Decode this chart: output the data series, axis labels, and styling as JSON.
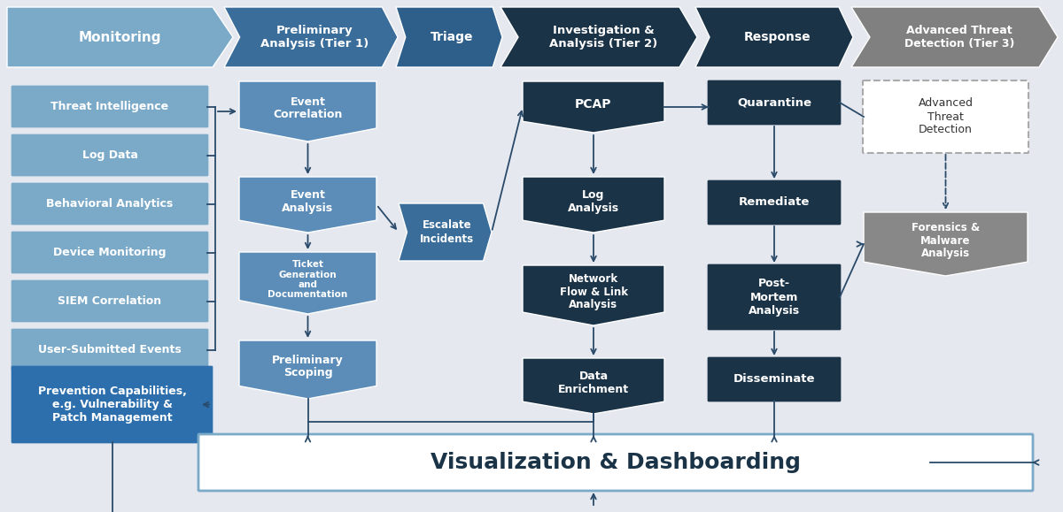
{
  "bg_color": "#e5e8ef",
  "header_colors": {
    "monitoring": "#7baac9",
    "prelim": "#3a6d99",
    "triage": "#2e5f8a",
    "investigation": "#1a3347",
    "response": "#1a3347",
    "advanced": "#808080"
  },
  "headers": [
    "Monitoring",
    "Preliminary\nAnalysis (Tier 1)",
    "Triage",
    "Investigation &\nAnalysis (Tier 2)",
    "Response",
    "Advanced Threat\nDetection (Tier 3)"
  ],
  "monitoring_boxes": [
    "Threat Intelligence",
    "Log Data",
    "Behavioral Analytics",
    "Device Monitoring",
    "SIEM Correlation",
    "User-Submitted Events"
  ],
  "monitoring_box_color": "#7baac9",
  "prevention_box_color": "#2d6fad",
  "prevention_text": "Prevention Capabilities,\ne.g. Vulnerability &\nPatch Management",
  "prelim_box_color": "#5b8db8",
  "triage_box_color": "#3a6d99",
  "investigation_box_color": "#1a3347",
  "response_box_color": "#1a3347",
  "viz_label": "Visualization & Dashboarding",
  "viz_border_color": "#5b8db8",
  "arrow_color": "#2a4a6a",
  "line_color": "#2a4a6a"
}
